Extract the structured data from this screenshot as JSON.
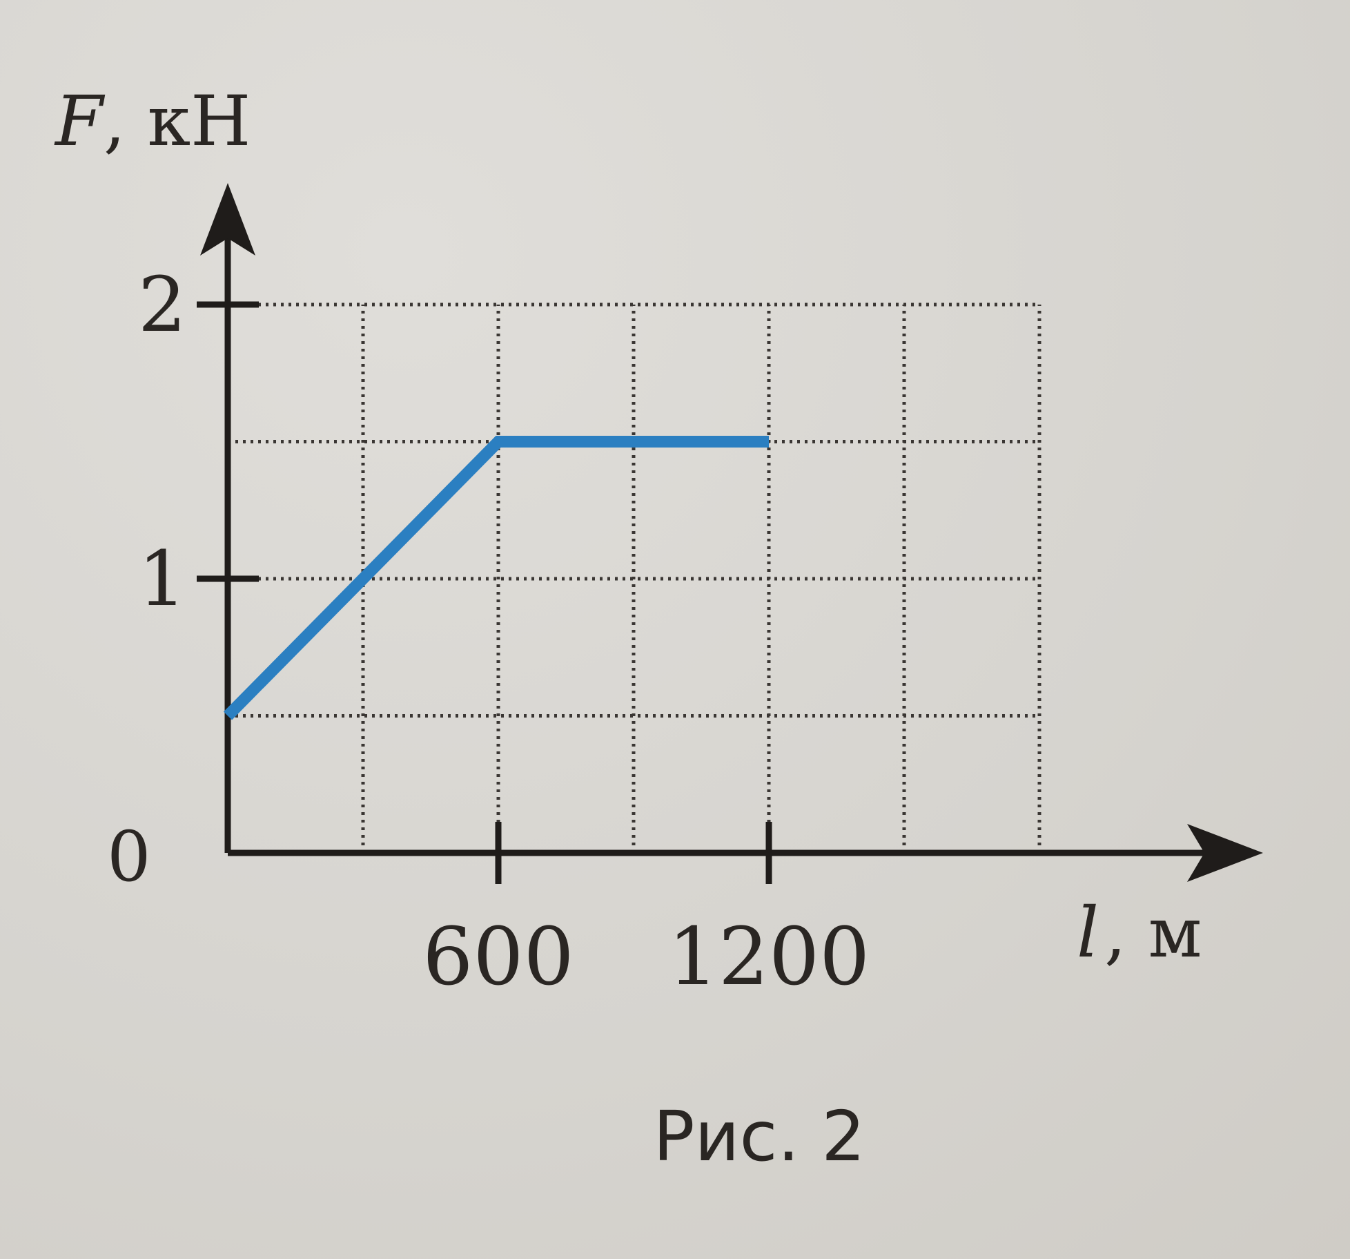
{
  "chart_data": {
    "type": "line",
    "ylabel_var": "F",
    "ylabel_unit": ", кН",
    "xlabel_var": "l",
    "xlabel_unit": ", м",
    "caption": "Рис. 2",
    "origin_label": "0",
    "x_ticks": [
      600,
      1200
    ],
    "x_tick_labels": [
      "600",
      "1200"
    ],
    "y_ticks": [
      1,
      2
    ],
    "y_tick_labels": [
      "1",
      "2"
    ],
    "xlim": [
      0,
      1800
    ],
    "ylim": [
      0,
      2
    ],
    "grid": true,
    "grid_style": "dotted",
    "x_grid_step": 300,
    "y_grid_step": 0.5,
    "series": [
      {
        "color": "#2b7fc1",
        "x": [
          0,
          600,
          1200
        ],
        "y": [
          0.5,
          1.5,
          1.5
        ]
      }
    ]
  }
}
